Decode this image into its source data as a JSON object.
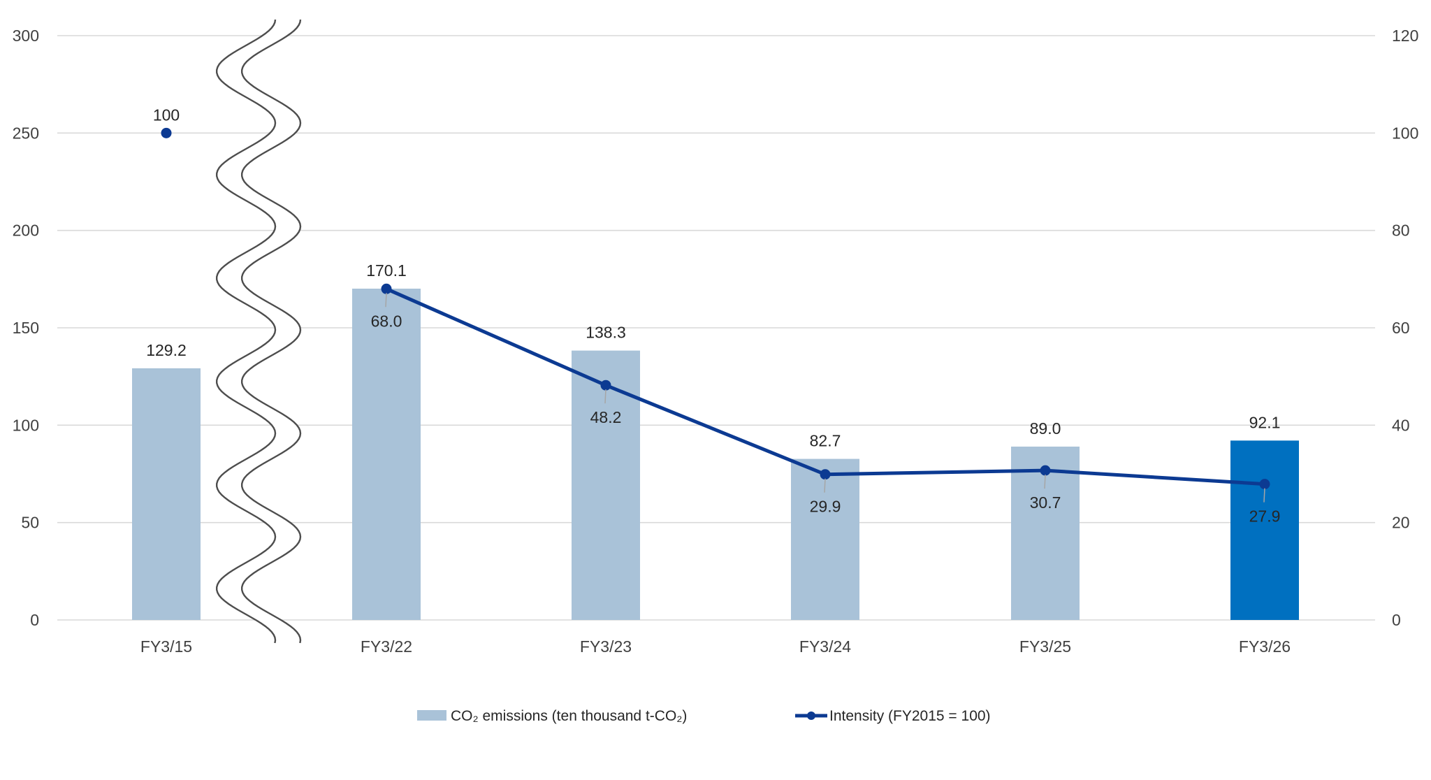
{
  "chart_data": {
    "type": "bar",
    "categories": [
      "FY3/15",
      "FY3/22",
      "FY3/23",
      "FY3/24",
      "FY3/25",
      "FY3/26"
    ],
    "series": [
      {
        "name": "CO₂ emissions (ten thousand t-CO₂)",
        "type": "bar",
        "axis": "left",
        "values": [
          129.2,
          170.1,
          138.3,
          82.7,
          89.0,
          92.1
        ],
        "labels": [
          "129.2",
          "170.1",
          "138.3",
          "82.7",
          "89.0",
          "92.1"
        ],
        "color": "#A9C2D8",
        "highlight_color": "#0070C0",
        "highlight_index": 5
      },
      {
        "name": "Intensity (FY2015 = 100)",
        "type": "line",
        "axis": "right",
        "values": [
          100,
          68.0,
          48.2,
          29.9,
          30.7,
          27.9
        ],
        "labels": [
          "100",
          "68.0",
          "48.2",
          "29.9",
          "30.7",
          "27.9"
        ],
        "color": "#0C3A92"
      }
    ],
    "y_left": {
      "min": 0,
      "max": 300,
      "ticks": [
        "0",
        "50",
        "100",
        "150",
        "200",
        "250",
        "300"
      ]
    },
    "y_right": {
      "min": 0,
      "max": 120,
      "ticks": [
        "0",
        "20",
        "40",
        "60",
        "80",
        "100",
        "120"
      ]
    },
    "axis_break": "between FY3/15 and FY3/22",
    "grid": true,
    "legend_position": "bottom",
    "colors": {
      "grid": "#D9D9D9",
      "tick_text": "#404040",
      "label_text": "#262626",
      "highlight_label": "#FFFFFF",
      "break_line": "#4D4D4D"
    }
  }
}
